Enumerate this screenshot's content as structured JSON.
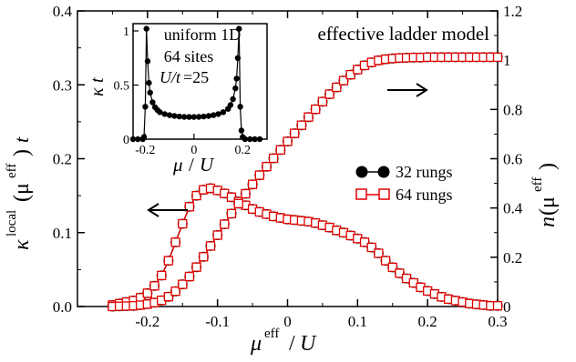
{
  "chart_data": [
    {
      "type": "scatter",
      "title": "",
      "annotation": "effective ladder model",
      "xlabel": "μ^eff / U",
      "ylabel_left": "κ^local(μ^eff) t",
      "ylabel_right": "n(μ^eff)",
      "xlim": [
        -0.3,
        0.3
      ],
      "ylim_left": [
        0,
        0.4
      ],
      "ylim_right": [
        0,
        1.2
      ],
      "x_ticks": [
        "-0.2",
        "-0.1",
        "0",
        "0.1",
        "0.2",
        "0.3"
      ],
      "y_left_ticks": [
        "0.0",
        "0.1",
        "0.2",
        "0.3",
        "0.4"
      ],
      "y_right_ticks": [
        "0",
        "0.2",
        "0.4",
        "0.6",
        "0.8",
        "1",
        "1.2"
      ],
      "legend": {
        "position": "middle-right",
        "entries": [
          "32 rungs",
          "64 rungs"
        ]
      },
      "arrow_left_axis": "points left, next to κ curve",
      "arrow_right_axis": "points right, next to n curve",
      "kappa_series": {
        "axis": "left",
        "x": [
          -0.25,
          -0.24,
          -0.23,
          -0.22,
          -0.21,
          -0.2,
          -0.19,
          -0.18,
          -0.17,
          -0.16,
          -0.15,
          -0.14,
          -0.13,
          -0.12,
          -0.11,
          -0.1,
          -0.09,
          -0.08,
          -0.07,
          -0.06,
          -0.05,
          -0.04,
          -0.03,
          -0.02,
          -0.01,
          0.0,
          0.01,
          0.02,
          0.03,
          0.04,
          0.05,
          0.06,
          0.07,
          0.08,
          0.09,
          0.1,
          0.11,
          0.12,
          0.13,
          0.14,
          0.15,
          0.16,
          0.17,
          0.18,
          0.19,
          0.2,
          0.21,
          0.22,
          0.23,
          0.24,
          0.25,
          0.26,
          0.27,
          0.28,
          0.29,
          0.3
        ],
        "rungs32": [
          0.002,
          0.004,
          0.006,
          0.008,
          0.012,
          0.018,
          0.028,
          0.042,
          0.062,
          0.087,
          0.112,
          0.135,
          0.15,
          0.158,
          0.16,
          0.157,
          0.153,
          0.148,
          0.142,
          0.137,
          0.132,
          0.128,
          0.125,
          0.122,
          0.12,
          0.118,
          0.117,
          0.116,
          0.115,
          0.113,
          0.11,
          0.107,
          0.103,
          0.1,
          0.096,
          0.092,
          0.087,
          0.08,
          0.072,
          0.062,
          0.053,
          0.045,
          0.038,
          0.032,
          0.026,
          0.021,
          0.017,
          0.013,
          0.01,
          0.008,
          0.006,
          0.004,
          0.003,
          0.002,
          0.001,
          0.001
        ],
        "rungs64": [
          0.002,
          0.004,
          0.006,
          0.008,
          0.012,
          0.018,
          0.028,
          0.042,
          0.062,
          0.087,
          0.112,
          0.135,
          0.15,
          0.158,
          0.16,
          0.157,
          0.153,
          0.148,
          0.142,
          0.137,
          0.132,
          0.128,
          0.125,
          0.122,
          0.12,
          0.118,
          0.117,
          0.116,
          0.115,
          0.113,
          0.11,
          0.107,
          0.103,
          0.1,
          0.096,
          0.092,
          0.087,
          0.08,
          0.072,
          0.062,
          0.053,
          0.045,
          0.038,
          0.032,
          0.026,
          0.021,
          0.017,
          0.013,
          0.01,
          0.008,
          0.006,
          0.004,
          0.003,
          0.002,
          0.001,
          0.001
        ]
      },
      "density_series": {
        "axis": "right",
        "x": [
          -0.25,
          -0.24,
          -0.23,
          -0.22,
          -0.21,
          -0.2,
          -0.19,
          -0.18,
          -0.17,
          -0.16,
          -0.15,
          -0.14,
          -0.13,
          -0.12,
          -0.11,
          -0.1,
          -0.09,
          -0.08,
          -0.07,
          -0.06,
          -0.05,
          -0.04,
          -0.03,
          -0.02,
          -0.01,
          0.0,
          0.01,
          0.02,
          0.03,
          0.04,
          0.05,
          0.06,
          0.07,
          0.08,
          0.09,
          0.1,
          0.11,
          0.12,
          0.13,
          0.14,
          0.15,
          0.16,
          0.17,
          0.18,
          0.19,
          0.2,
          0.21,
          0.22,
          0.23,
          0.24,
          0.25,
          0.26,
          0.27,
          0.28,
          0.29,
          0.3
        ],
        "rungs32": [
          0.0,
          0.001,
          0.002,
          0.003,
          0.006,
          0.01,
          0.016,
          0.025,
          0.04,
          0.062,
          0.09,
          0.122,
          0.16,
          0.202,
          0.246,
          0.29,
          0.334,
          0.377,
          0.418,
          0.458,
          0.496,
          0.533,
          0.568,
          0.602,
          0.636,
          0.67,
          0.703,
          0.736,
          0.769,
          0.801,
          0.832,
          0.862,
          0.89,
          0.917,
          0.941,
          0.962,
          0.979,
          0.991,
          0.999,
          1.004,
          1.007,
          1.009,
          1.01,
          1.011,
          1.011,
          1.012,
          1.012,
          1.012,
          1.012,
          1.012,
          1.012,
          1.012,
          1.012,
          1.012,
          1.012,
          1.012
        ],
        "rungs64": [
          0.0,
          0.001,
          0.002,
          0.003,
          0.006,
          0.01,
          0.016,
          0.025,
          0.04,
          0.062,
          0.09,
          0.122,
          0.16,
          0.202,
          0.246,
          0.29,
          0.334,
          0.377,
          0.418,
          0.458,
          0.496,
          0.533,
          0.568,
          0.602,
          0.636,
          0.67,
          0.703,
          0.736,
          0.769,
          0.801,
          0.832,
          0.862,
          0.89,
          0.917,
          0.941,
          0.962,
          0.979,
          0.991,
          0.999,
          1.004,
          1.007,
          1.009,
          1.01,
          1.011,
          1.011,
          1.012,
          1.012,
          1.012,
          1.012,
          1.012,
          1.012,
          1.012,
          1.012,
          1.012,
          1.012,
          1.012
        ]
      }
    },
    {
      "type": "line",
      "title": "",
      "annotation_lines": [
        "uniform 1D",
        "64 sites",
        "U/t=25"
      ],
      "xlabel": "μ / U",
      "ylabel": "κ t",
      "xlim": [
        -0.25,
        0.3
      ],
      "ylim": [
        0,
        1.0
      ],
      "x_ticks": [
        "-0.2",
        "0",
        "0.2"
      ],
      "y_ticks": [
        "0",
        "0.5",
        "1"
      ],
      "x": [
        -0.25,
        -0.23,
        -0.21,
        -0.205,
        -0.2,
        -0.195,
        -0.19,
        -0.185,
        -0.18,
        -0.17,
        -0.16,
        -0.15,
        -0.14,
        -0.12,
        -0.1,
        -0.08,
        -0.06,
        -0.04,
        -0.02,
        0.0,
        0.02,
        0.04,
        0.06,
        0.08,
        0.1,
        0.12,
        0.14,
        0.15,
        0.16,
        0.17,
        0.175,
        0.18,
        0.185,
        0.19,
        0.195,
        0.2,
        0.21,
        0.23,
        0.25,
        0.27
      ],
      "values": [
        0.0,
        0.0,
        0.0,
        0.02,
        0.3,
        1.02,
        0.72,
        0.52,
        0.43,
        0.34,
        0.295,
        0.27,
        0.25,
        0.232,
        0.222,
        0.214,
        0.209,
        0.206,
        0.205,
        0.205,
        0.206,
        0.209,
        0.214,
        0.222,
        0.232,
        0.25,
        0.28,
        0.315,
        0.37,
        0.47,
        0.56,
        0.75,
        1.02,
        0.3,
        0.08,
        0.02,
        0.0,
        0.0,
        0.0,
        0.0
      ]
    }
  ]
}
